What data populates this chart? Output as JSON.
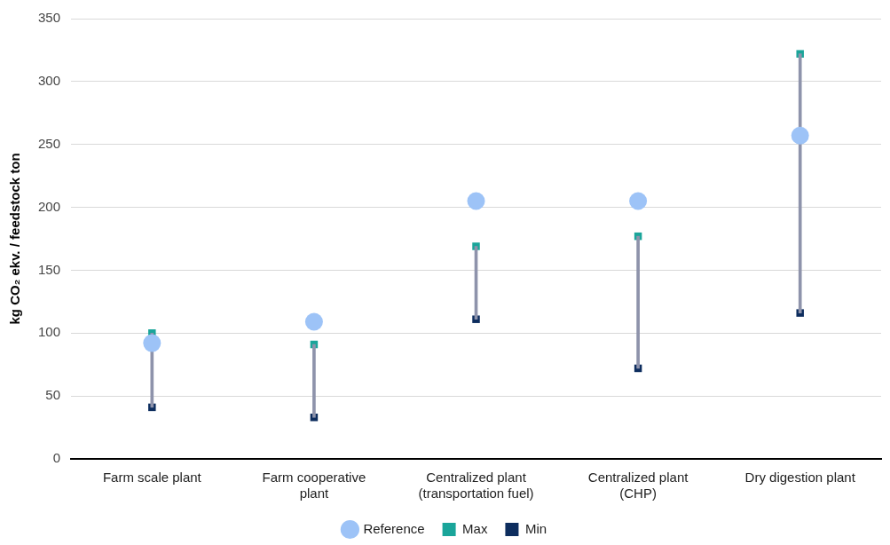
{
  "chart_data": {
    "type": "scatter",
    "ylabel": "kg CO₂ ekv. / feedstock ton",
    "categories": [
      "Farm scale plant",
      "Farm cooperative plant",
      "Centralized plant (transportation fuel)",
      "Centralized plant (CHP)",
      "Dry digestion plant"
    ],
    "series": [
      {
        "type": "bar",
        "color": "#8e93ab",
        "base": [
          41,
          33,
          111,
          72,
          116
        ],
        "values": [
          59,
          58,
          58,
          105,
          206
        ]
      },
      {
        "name": "Max",
        "color": "#1aa59a",
        "marker": "square",
        "values": [
          100,
          91,
          169,
          177,
          322
        ]
      },
      {
        "name": "Min",
        "color": "#0d2d5e",
        "marker": "square",
        "values": [
          41,
          33,
          111,
          72,
          116
        ]
      },
      {
        "name": "Reference",
        "color": "#9dc3f7",
        "marker": "circle",
        "values": [
          92,
          109,
          205,
          205,
          257
        ]
      }
    ],
    "ylim": [
      0,
      350
    ],
    "yticks": [
      0,
      50,
      100,
      150,
      200,
      250,
      300,
      350
    ],
    "grid": "y",
    "legend": "bottom"
  }
}
